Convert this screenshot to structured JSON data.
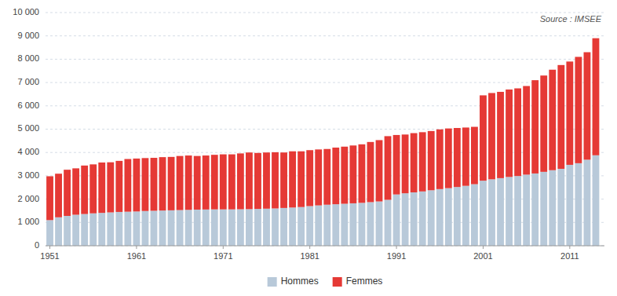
{
  "chart_data": {
    "type": "bar",
    "stacked": true,
    "grid": true,
    "legend": "bottom",
    "annotations": [
      "Source : IMSEE"
    ],
    "x": [
      1951,
      1952,
      1953,
      1954,
      1955,
      1956,
      1957,
      1958,
      1959,
      1960,
      1961,
      1962,
      1963,
      1964,
      1965,
      1966,
      1967,
      1968,
      1969,
      1970,
      1971,
      1972,
      1973,
      1974,
      1975,
      1976,
      1977,
      1978,
      1979,
      1980,
      1981,
      1982,
      1983,
      1984,
      1985,
      1986,
      1987,
      1988,
      1989,
      1990,
      1991,
      1992,
      1993,
      1994,
      1995,
      1996,
      1997,
      1998,
      1999,
      2000,
      2001,
      2002,
      2003,
      2004,
      2005,
      2006,
      2007,
      2008,
      2009,
      2010,
      2011,
      2012,
      2013,
      2014
    ],
    "series": [
      {
        "name": "Hommes",
        "color": "#b8c9d9",
        "values": [
          1100,
          1220,
          1280,
          1330,
          1360,
          1390,
          1410,
          1430,
          1450,
          1460,
          1470,
          1490,
          1500,
          1510,
          1520,
          1530,
          1540,
          1550,
          1555,
          1560,
          1560,
          1560,
          1565,
          1570,
          1580,
          1590,
          1600,
          1620,
          1640,
          1660,
          1700,
          1730,
          1760,
          1780,
          1800,
          1820,
          1840,
          1870,
          1900,
          1970,
          2200,
          2250,
          2290,
          2330,
          2380,
          2430,
          2470,
          2520,
          2570,
          2640,
          2790,
          2850,
          2900,
          2950,
          2990,
          3050,
          3100,
          3170,
          3240,
          3300,
          3470,
          3540,
          3690,
          3880
        ]
      },
      {
        "name": "Femmes",
        "color": "#e53935",
        "values": [
          1880,
          1870,
          1980,
          1990,
          2080,
          2100,
          2160,
          2150,
          2190,
          2260,
          2270,
          2270,
          2270,
          2290,
          2290,
          2320,
          2330,
          2300,
          2315,
          2340,
          2360,
          2360,
          2395,
          2430,
          2400,
          2410,
          2410,
          2380,
          2410,
          2390,
          2400,
          2400,
          2390,
          2430,
          2450,
          2480,
          2510,
          2580,
          2630,
          2730,
          2550,
          2520,
          2540,
          2540,
          2540,
          2560,
          2560,
          2530,
          2500,
          2460,
          3660,
          3700,
          3700,
          3750,
          3760,
          3800,
          4000,
          4130,
          4310,
          4450,
          4430,
          4560,
          4610,
          5020
        ]
      }
    ],
    "xlim": [
      1950.5,
      2015
    ],
    "xticks": [
      1951,
      1961,
      1971,
      1981,
      1991,
      2001,
      2011
    ],
    "ylim": [
      0,
      10000
    ],
    "yticks": [
      0,
      {
        "value": 1000,
        "label": "1 000"
      },
      {
        "value": 2000,
        "label": "2 000"
      },
      {
        "value": 3000,
        "label": "3 000"
      },
      {
        "value": 4000,
        "label": "4 000"
      },
      {
        "value": 5000,
        "label": "5 000"
      },
      {
        "value": 6000,
        "label": "6 000"
      },
      {
        "value": 7000,
        "label": "7 000"
      },
      {
        "value": 8000,
        "label": "8 000"
      },
      {
        "value": 9000,
        "label": "9 000"
      },
      {
        "value": 10000,
        "label": "10 000"
      }
    ]
  }
}
